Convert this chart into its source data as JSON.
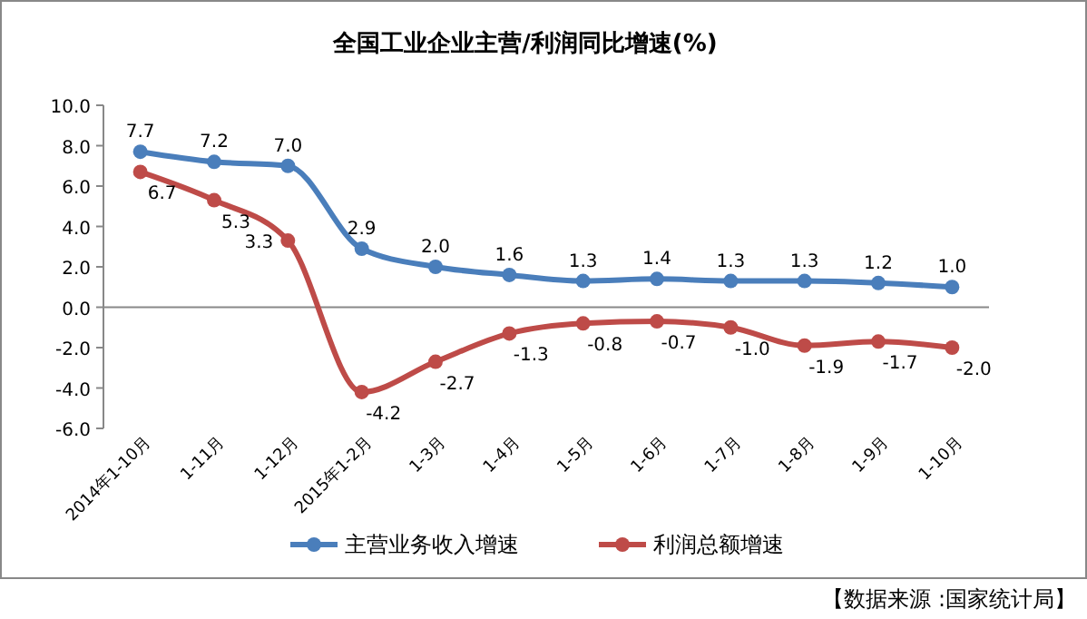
{
  "chart_data": {
    "type": "line",
    "title": "全国工业企业主营/利润同比增速(%)",
    "categories": [
      "2014年1-10月",
      "1-11月",
      "1-12月",
      "2015年1-2月",
      "1-3月",
      "1-4月",
      "1-5月",
      "1-6月",
      "1-7月",
      "1-8月",
      "1-9月",
      "1-10月"
    ],
    "series": [
      {
        "name": "主营业务收入增速",
        "color": "#4a7ebb",
        "values": [
          7.7,
          7.2,
          7.0,
          2.9,
          2.0,
          1.6,
          1.3,
          1.4,
          1.3,
          1.3,
          1.2,
          1.0
        ],
        "value_labels": [
          "7.7",
          "7.2",
          "7.0",
          "2.9",
          "2.0",
          "1.6",
          "1.3",
          "1.4",
          "1.3",
          "1.3",
          "1.2",
          "1.0"
        ]
      },
      {
        "name": "利润总额增速",
        "color": "#be4b48",
        "values": [
          6.7,
          5.3,
          3.3,
          -4.2,
          -2.7,
          -1.3,
          -0.8,
          -0.7,
          -1.0,
          -1.9,
          -1.7,
          -2.0
        ],
        "value_labels": [
          "6.7",
          "5.3",
          "3.3",
          "-4.2",
          "-2.7",
          "-1.3",
          "-0.8",
          "-0.7",
          "-1.0",
          "-1.9",
          "-1.7",
          "-2.0"
        ]
      }
    ],
    "ylim": [
      -6,
      10
    ],
    "yticks": [
      {
        "value": -6,
        "label": "-6.0"
      },
      {
        "value": -4,
        "label": "-4.0"
      },
      {
        "value": -2,
        "label": "-2.0"
      },
      {
        "value": 0,
        "label": "0.0"
      },
      {
        "value": 2,
        "label": "2.0"
      },
      {
        "value": 4,
        "label": "4.0"
      },
      {
        "value": 6,
        "label": "6.0"
      },
      {
        "value": 8,
        "label": "8.0"
      },
      {
        "value": 10,
        "label": "10.0"
      }
    ],
    "marker": "circle",
    "line_style": "solid",
    "legend": "bottom",
    "annotations": [
      "【数据来源 :国家统计局】"
    ]
  }
}
